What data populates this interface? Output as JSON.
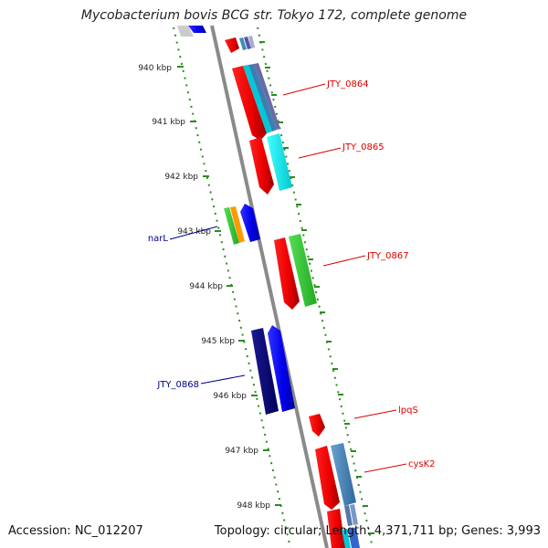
{
  "header": {
    "title": "Mycobacterium bovis BCG str. Tokyo 172, complete genome"
  },
  "footer": {
    "accession": "Accession: NC_012207",
    "topology": "Topology: circular; Length: 4,371,711 bp; Genes: 3,993"
  },
  "ruler": {
    "tick_labels": [
      "940 kbp",
      "941 kbp",
      "942 kbp",
      "943 kbp",
      "944 kbp",
      "945 kbp",
      "946 kbp",
      "947 kbp",
      "948 kbp"
    ],
    "tick_color": "#2e8b22"
  },
  "genes": {
    "reverse_strand": [
      {
        "label": "narL",
        "color": "#00008b"
      },
      {
        "label": "JTY_0868",
        "color": "#00008b"
      }
    ],
    "forward_strand": [
      {
        "label": "JTY_0864",
        "color": "#dd0000"
      },
      {
        "label": "JTY_0865",
        "color": "#dd0000"
      },
      {
        "label": "JTY_0867",
        "color": "#dd0000"
      },
      {
        "label": "lpqS",
        "color": "#dd0000"
      },
      {
        "label": "cysK2",
        "color": "#dd0000"
      }
    ]
  },
  "colors": {
    "backbone": "#888888",
    "forward_gene": "#ee1111",
    "reverse_gene": "#0000ee",
    "dark_blue_gene": "#000080",
    "cyan_gene": "#00e5ee",
    "green_gene": "#33cc33",
    "orange_gene": "#ff9900",
    "steel_gene": "#4682b4"
  }
}
